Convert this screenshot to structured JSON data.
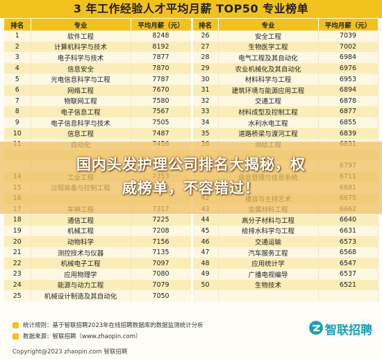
{
  "title": "3 年工作经验人才平均月薪 TOP50 专业榜单",
  "chart_data": {
    "type": "table",
    "columns": [
      "排名",
      "专业",
      "平均月薪（元）"
    ],
    "rows": [
      {
        "rank": "1",
        "major": "软件工程",
        "salary": 8248
      },
      {
        "rank": "2",
        "major": "计算机科学与技术",
        "salary": 8192
      },
      {
        "rank": "3",
        "major": "电子科学与技术",
        "salary": 7877
      },
      {
        "rank": "4",
        "major": "信息安全",
        "salary": 7870
      },
      {
        "rank": "5",
        "major": "光电信息科学与工程",
        "salary": 7787
      },
      {
        "rank": "6",
        "major": "网络工程",
        "salary": 7670
      },
      {
        "rank": "7",
        "major": "物联网工程",
        "salary": 7580
      },
      {
        "rank": "8",
        "major": "电子信息工程",
        "salary": 7567
      },
      {
        "rank": "9",
        "major": "电子信息科学与技术",
        "salary": 7505
      },
      {
        "rank": "10",
        "major": "信息工程",
        "salary": 7487
      },
      {
        "rank": "11",
        "major": "自动化",
        "salary": 7456
      },
      {
        "rank": "",
        "major": "",
        "salary": null
      },
      {
        "rank": "",
        "major": "",
        "salary": null
      },
      {
        "rank": "14",
        "major": "工业工程",
        "salary": 7353
      },
      {
        "rank": "15",
        "major": "过程装备与控制工程",
        "salary": 7349
      },
      {
        "rank": "16",
        "major": "",
        "salary": null
      },
      {
        "rank": "17",
        "major": "车辆工程",
        "salary": 7317
      },
      {
        "rank": "18",
        "major": "通信工程",
        "salary": 7225
      },
      {
        "rank": "19",
        "major": "机械工程",
        "salary": 7208
      },
      {
        "rank": "20",
        "major": "动物科学",
        "salary": 7156
      },
      {
        "rank": "21",
        "major": "测控技术与仪器",
        "salary": 7135
      },
      {
        "rank": "22",
        "major": "机械电子工程",
        "salary": 7097
      },
      {
        "rank": "23",
        "major": "应用物理学",
        "salary": 7080
      },
      {
        "rank": "24",
        "major": "能源与动力工程",
        "salary": 7079
      },
      {
        "rank": "25",
        "major": "机械设计制造及其自动化",
        "salary": 7050
      },
      {
        "rank": "26",
        "major": "安全工程",
        "salary": 7039
      },
      {
        "rank": "27",
        "major": "生物医学工程",
        "salary": 7002
      },
      {
        "rank": "28",
        "major": "电气工程及其自动化",
        "salary": 6984
      },
      {
        "rank": "29",
        "major": "农业机械化及其自动化",
        "salary": 6976
      },
      {
        "rank": "30",
        "major": "材料科学与工程",
        "salary": 6953
      },
      {
        "rank": "31",
        "major": "建筑环境与能源应用工程",
        "salary": 6894
      },
      {
        "rank": "32",
        "major": "交通工程",
        "salary": 6878
      },
      {
        "rank": "33",
        "major": "材料成型及控制工程",
        "salary": 6877
      },
      {
        "rank": "34",
        "major": "水利水电工程",
        "salary": 6855
      },
      {
        "rank": "35",
        "major": "道路桥梁与渡河工程",
        "salary": 6839
      },
      {
        "rank": "36",
        "major": "测绘工程",
        "salary": 6831
      },
      {
        "rank": "",
        "major": "",
        "salary": null
      },
      {
        "rank": "",
        "major": "",
        "salary": 6797
      },
      {
        "rank": "",
        "major": "信息管理与信息系统",
        "salary": 6711
      },
      {
        "rank": "",
        "major": "",
        "salary": 6681
      },
      {
        "rank": "42",
        "major": "播音与主持艺术",
        "salary": 6675
      },
      {
        "rank": "43",
        "major": "金属材料工程",
        "salary": 6662
      },
      {
        "rank": "44",
        "major": "高分子材料与工程",
        "salary": 6640
      },
      {
        "rank": "45",
        "major": "给排水科学与工程",
        "salary": 6631
      },
      {
        "rank": "46",
        "major": "交通运输",
        "salary": 6573
      },
      {
        "rank": "47",
        "major": "汽车服务工程",
        "salary": 6568
      },
      {
        "rank": "48",
        "major": "应用统计学",
        "salary": 6547
      },
      {
        "rank": "49",
        "major": "广播电视编导",
        "salary": 6537
      },
      {
        "rank": "50",
        "major": "生物技术",
        "salary": 6521
      }
    ]
  },
  "header": {
    "rank": "排名",
    "major": "专业",
    "salary": "平均月薪（元）"
  },
  "overlay": {
    "line1": "国内头发护理公司排名大揭秘，权",
    "line2": "威榜单，不容错过！"
  },
  "footer": {
    "rule": "统计规则：基于智联招聘2023年在线招聘数据库的数据监测统计分析",
    "source": "数据来源：智联招聘（www.zhaopin.com）",
    "copyright": "Copyright@2023 zhaopin.com 智联招聘",
    "logo_text": "智联招聘"
  },
  "colors": {
    "accent": "#f1c21b",
    "row_light": "#fdf8e3",
    "row_dark": "#faedb8",
    "logo": "#1aa0b8"
  }
}
